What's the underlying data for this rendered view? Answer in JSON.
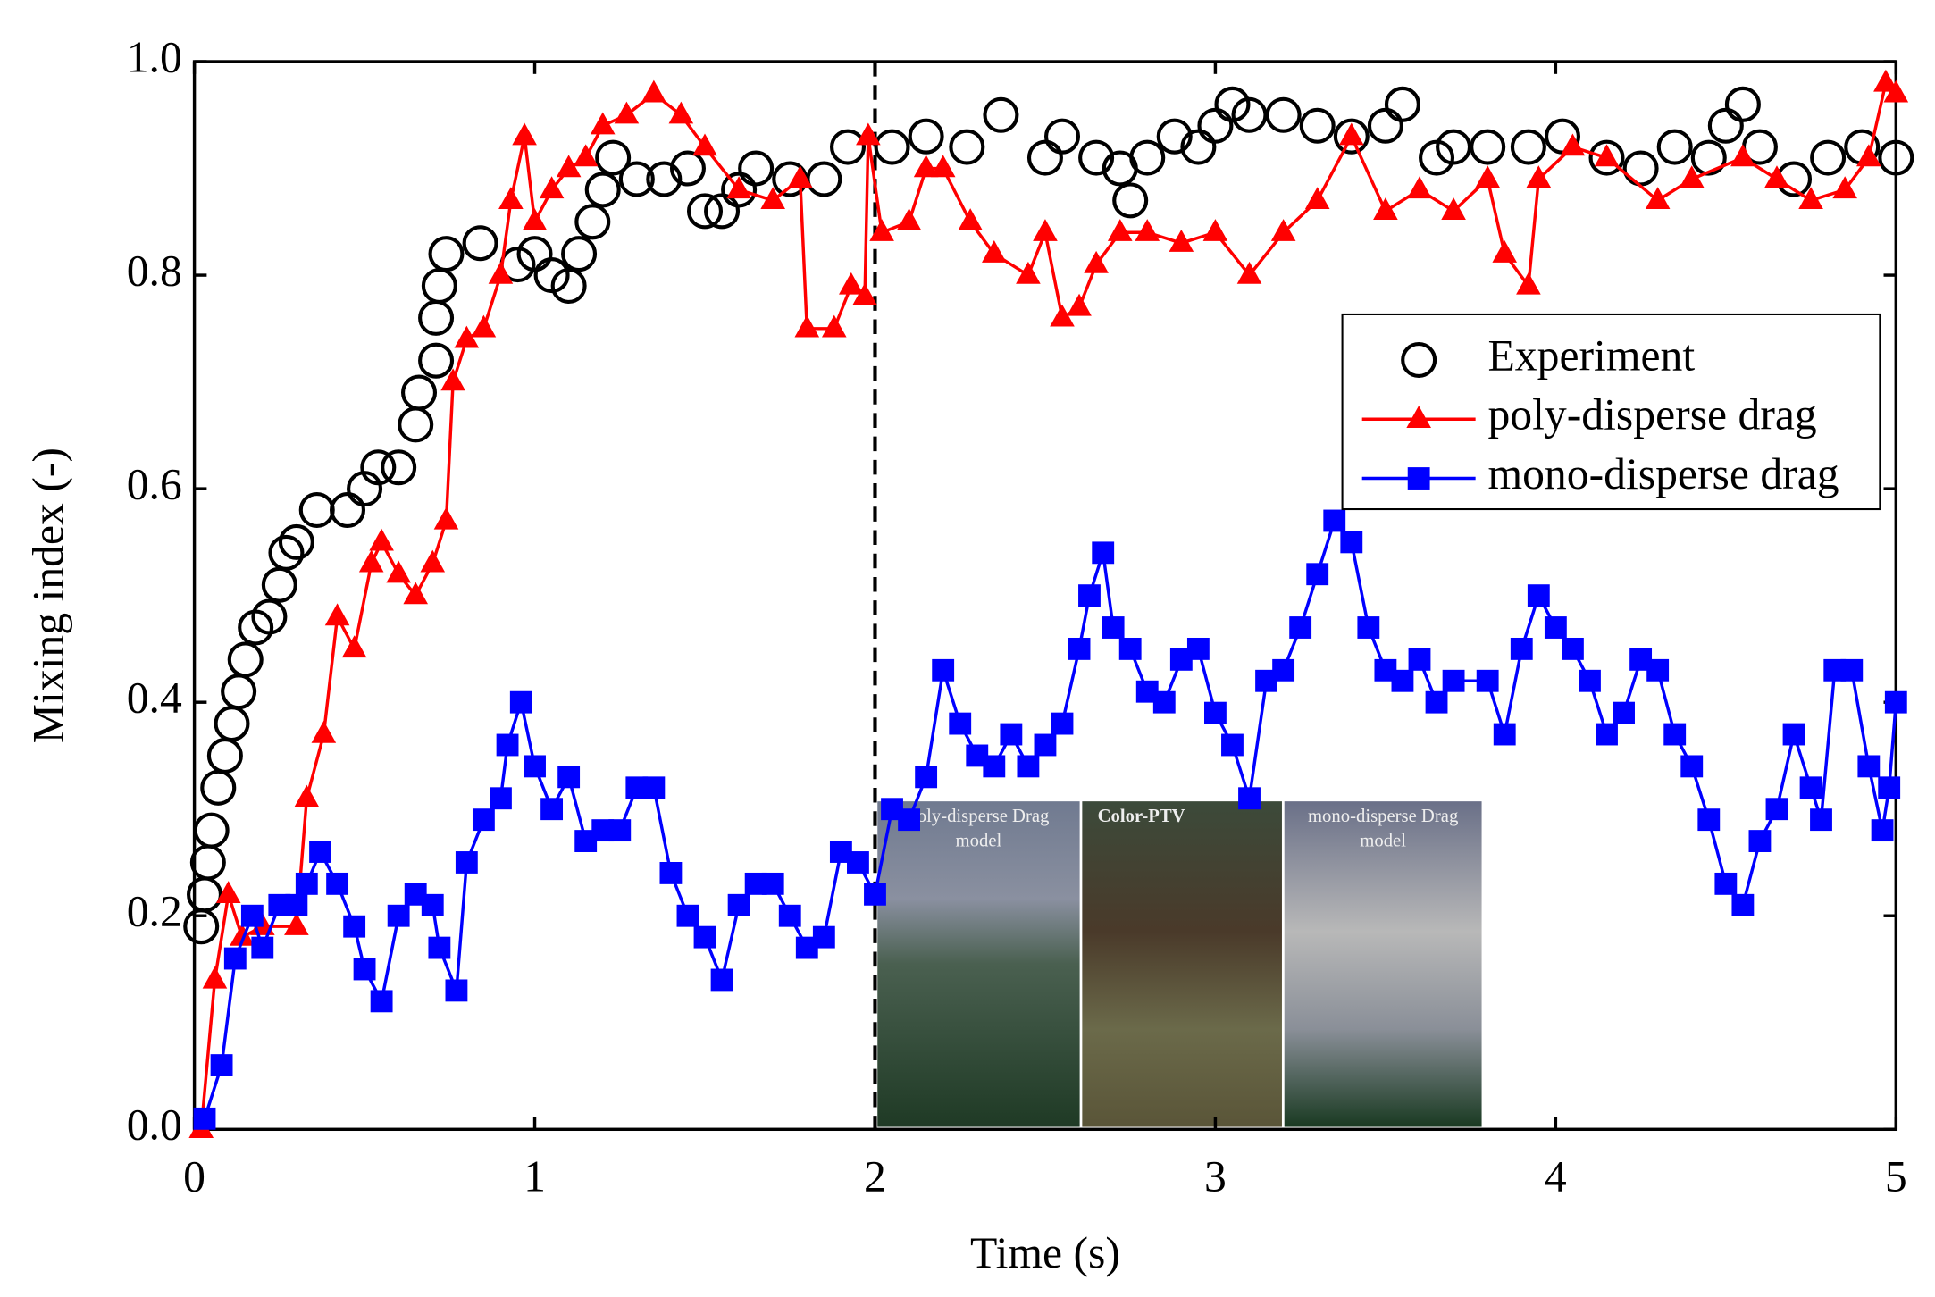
{
  "chart_data": {
    "type": "line",
    "x_label": "Time (s)",
    "y_label": "Mixing index (-)",
    "xlim": [
      0,
      5
    ],
    "ylim": [
      0,
      1
    ],
    "xticks": [
      0,
      1,
      2,
      3,
      4,
      5
    ],
    "yticks": [
      {
        "value": 0,
        "label": "0.0"
      },
      0.2,
      0.4,
      0.6,
      0.8,
      {
        "value": 1,
        "label": "1.0"
      }
    ],
    "reference_line_x": 2,
    "legend": "center right",
    "series": [
      {
        "name": "Experiment",
        "color": "#000000",
        "marker": "circle",
        "line": false,
        "x": [
          0.02,
          0.03,
          0.04,
          0.05,
          0.07,
          0.09,
          0.11,
          0.13,
          0.15,
          0.18,
          0.22,
          0.25,
          0.27,
          0.3,
          0.36,
          0.45,
          0.5,
          0.54,
          0.6,
          0.65,
          0.66,
          0.71,
          0.71,
          0.72,
          0.74,
          0.84,
          0.95,
          1.0,
          1.05,
          1.1,
          1.13,
          1.17,
          1.2,
          1.23,
          1.3,
          1.38,
          1.45,
          1.5,
          1.55,
          1.6,
          1.65,
          1.75,
          1.85,
          1.92,
          2.05,
          2.15,
          2.27,
          2.37,
          2.5,
          2.55,
          2.65,
          2.72,
          2.75,
          2.8,
          2.88,
          2.95,
          3.0,
          3.05,
          3.1,
          3.2,
          3.3,
          3.4,
          3.5,
          3.55,
          3.65,
          3.7,
          3.8,
          3.92,
          4.02,
          4.15,
          4.25,
          4.35,
          4.45,
          4.5,
          4.55,
          4.6,
          4.7,
          4.8,
          4.9,
          5.0
        ],
        "values": [
          0.19,
          0.22,
          0.25,
          0.28,
          0.32,
          0.35,
          0.38,
          0.41,
          0.44,
          0.47,
          0.48,
          0.51,
          0.54,
          0.55,
          0.58,
          0.58,
          0.6,
          0.62,
          0.62,
          0.66,
          0.69,
          0.72,
          0.76,
          0.79,
          0.82,
          0.83,
          0.81,
          0.82,
          0.8,
          0.79,
          0.82,
          0.85,
          0.88,
          0.91,
          0.89,
          0.89,
          0.9,
          0.86,
          0.86,
          0.88,
          0.9,
          0.89,
          0.89,
          0.92,
          0.92,
          0.93,
          0.92,
          0.95,
          0.91,
          0.93,
          0.91,
          0.9,
          0.87,
          0.91,
          0.93,
          0.92,
          0.94,
          0.96,
          0.95,
          0.95,
          0.94,
          0.93,
          0.94,
          0.96,
          0.91,
          0.92,
          0.92,
          0.92,
          0.93,
          0.91,
          0.9,
          0.92,
          0.91,
          0.94,
          0.96,
          0.92,
          0.89,
          0.91,
          0.92,
          0.91
        ]
      },
      {
        "name": "poly-disperse drag",
        "color": "#ff0000",
        "marker": "triangle",
        "line": true,
        "x": [
          0.02,
          0.06,
          0.1,
          0.14,
          0.2,
          0.3,
          0.33,
          0.38,
          0.42,
          0.47,
          0.52,
          0.55,
          0.6,
          0.65,
          0.7,
          0.74,
          0.76,
          0.8,
          0.85,
          0.9,
          0.93,
          0.97,
          1.0,
          1.05,
          1.1,
          1.15,
          1.2,
          1.27,
          1.35,
          1.43,
          1.5,
          1.6,
          1.7,
          1.78,
          1.8,
          1.88,
          1.93,
          1.97,
          1.98,
          2.02,
          2.1,
          2.15,
          2.2,
          2.28,
          2.35,
          2.45,
          2.5,
          2.55,
          2.6,
          2.65,
          2.72,
          2.8,
          2.9,
          3.0,
          3.1,
          3.2,
          3.3,
          3.4,
          3.5,
          3.6,
          3.7,
          3.8,
          3.85,
          3.92,
          3.95,
          4.05,
          4.15,
          4.3,
          4.4,
          4.55,
          4.65,
          4.75,
          4.85,
          4.92,
          4.97,
          5.0
        ],
        "values": [
          0.0,
          0.14,
          0.22,
          0.18,
          0.19,
          0.19,
          0.31,
          0.37,
          0.48,
          0.45,
          0.53,
          0.55,
          0.52,
          0.5,
          0.53,
          0.57,
          0.7,
          0.74,
          0.75,
          0.8,
          0.87,
          0.93,
          0.85,
          0.88,
          0.9,
          0.91,
          0.94,
          0.95,
          0.97,
          0.95,
          0.92,
          0.88,
          0.87,
          0.89,
          0.75,
          0.75,
          0.79,
          0.78,
          0.93,
          0.84,
          0.85,
          0.9,
          0.9,
          0.85,
          0.82,
          0.8,
          0.84,
          0.76,
          0.77,
          0.81,
          0.84,
          0.84,
          0.83,
          0.84,
          0.8,
          0.84,
          0.87,
          0.93,
          0.86,
          0.88,
          0.86,
          0.89,
          0.82,
          0.79,
          0.89,
          0.92,
          0.91,
          0.87,
          0.89,
          0.91,
          0.89,
          0.87,
          0.88,
          0.91,
          0.98,
          0.97
        ]
      },
      {
        "name": "mono-disperse drag",
        "color": "#0000ff",
        "marker": "square",
        "line": true,
        "x": [
          0.03,
          0.08,
          0.12,
          0.17,
          0.2,
          0.25,
          0.3,
          0.33,
          0.37,
          0.42,
          0.47,
          0.5,
          0.55,
          0.6,
          0.65,
          0.7,
          0.72,
          0.77,
          0.8,
          0.85,
          0.9,
          0.92,
          0.96,
          1.0,
          1.05,
          1.1,
          1.15,
          1.2,
          1.25,
          1.3,
          1.35,
          1.4,
          1.45,
          1.5,
          1.55,
          1.6,
          1.65,
          1.7,
          1.75,
          1.8,
          1.85,
          1.9,
          1.95,
          2.0,
          2.05,
          2.1,
          2.15,
          2.2,
          2.25,
          2.3,
          2.35,
          2.4,
          2.45,
          2.5,
          2.55,
          2.6,
          2.63,
          2.67,
          2.7,
          2.75,
          2.8,
          2.85,
          2.9,
          2.95,
          3.0,
          3.05,
          3.1,
          3.15,
          3.2,
          3.25,
          3.3,
          3.35,
          3.4,
          3.45,
          3.5,
          3.55,
          3.6,
          3.65,
          3.7,
          3.8,
          3.85,
          3.9,
          3.95,
          4.0,
          4.05,
          4.1,
          4.15,
          4.2,
          4.25,
          4.3,
          4.35,
          4.4,
          4.45,
          4.5,
          4.55,
          4.6,
          4.65,
          4.7,
          4.75,
          4.78,
          4.82,
          4.87,
          4.92,
          4.96,
          4.98,
          5.0
        ],
        "values": [
          0.01,
          0.06,
          0.16,
          0.2,
          0.17,
          0.21,
          0.21,
          0.23,
          0.26,
          0.23,
          0.19,
          0.15,
          0.12,
          0.2,
          0.22,
          0.21,
          0.17,
          0.13,
          0.25,
          0.29,
          0.31,
          0.36,
          0.4,
          0.34,
          0.3,
          0.33,
          0.27,
          0.28,
          0.28,
          0.32,
          0.32,
          0.24,
          0.2,
          0.18,
          0.14,
          0.21,
          0.23,
          0.23,
          0.2,
          0.17,
          0.18,
          0.26,
          0.25,
          0.22,
          0.3,
          0.29,
          0.33,
          0.43,
          0.38,
          0.35,
          0.34,
          0.37,
          0.34,
          0.36,
          0.38,
          0.45,
          0.5,
          0.54,
          0.47,
          0.45,
          0.41,
          0.4,
          0.44,
          0.45,
          0.39,
          0.36,
          0.31,
          0.42,
          0.43,
          0.47,
          0.52,
          0.57,
          0.55,
          0.47,
          0.43,
          0.42,
          0.44,
          0.4,
          0.42,
          0.42,
          0.37,
          0.45,
          0.5,
          0.47,
          0.45,
          0.42,
          0.37,
          0.39,
          0.44,
          0.43,
          0.37,
          0.34,
          0.29,
          0.23,
          0.21,
          0.27,
          0.3,
          0.37,
          0.32,
          0.29,
          0.43,
          0.43,
          0.34,
          0.28,
          0.32,
          0.4
        ]
      }
    ],
    "inset_labels": [
      "poly-disperse Drag model",
      "Color-PTV",
      "mono-disperse Drag model"
    ]
  }
}
